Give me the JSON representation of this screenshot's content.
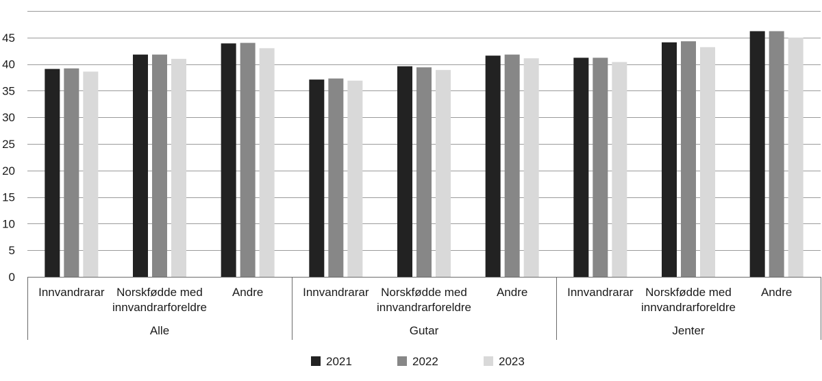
{
  "chart_data": {
    "type": "bar",
    "ylim": [
      0,
      50
    ],
    "yticks": [
      0,
      5,
      10,
      15,
      20,
      25,
      30,
      35,
      40,
      45
    ],
    "grid": "horizontal",
    "legend_position": "bottom",
    "groups": [
      {
        "label": "Alle",
        "categories": [
          [
            "Innvandrarar"
          ],
          [
            "Norskfødde med",
            "innvandrarforeldre"
          ],
          [
            "Andre"
          ]
        ]
      },
      {
        "label": "Gutar",
        "categories": [
          [
            "Innvandrarar"
          ],
          [
            "Norskfødde med",
            "innvandrarforeldre"
          ],
          [
            "Andre"
          ]
        ]
      },
      {
        "label": "Jenter",
        "categories": [
          [
            "Innvandrarar"
          ],
          [
            "Norskfødde med",
            "innvandrarforeldre"
          ],
          [
            "Andre"
          ]
        ]
      }
    ],
    "categories": [
      "Alle – Innvandrarar",
      "Alle – Norskfødde med innvandrarforeldre",
      "Alle – Andre",
      "Gutar – Innvandrarar",
      "Gutar – Norskfødde med innvandrarforeldre",
      "Gutar – Andre",
      "Jenter – Innvandrarar",
      "Jenter – Norskfødde med innvandrarforeldre",
      "Jenter – Andre"
    ],
    "series": [
      {
        "name": "2021",
        "color": "#222222",
        "values": [
          39.1,
          41.8,
          43.9,
          37.1,
          39.6,
          41.6,
          41.2,
          44.1,
          46.2
        ]
      },
      {
        "name": "2022",
        "color": "#878787",
        "values": [
          39.2,
          41.8,
          44.0,
          37.3,
          39.4,
          41.8,
          41.2,
          44.3,
          46.2
        ]
      },
      {
        "name": "2023",
        "color": "#d9d9d9",
        "values": [
          38.6,
          41.0,
          43.0,
          36.9,
          38.9,
          41.1,
          40.4,
          43.2,
          45.0
        ]
      }
    ]
  }
}
